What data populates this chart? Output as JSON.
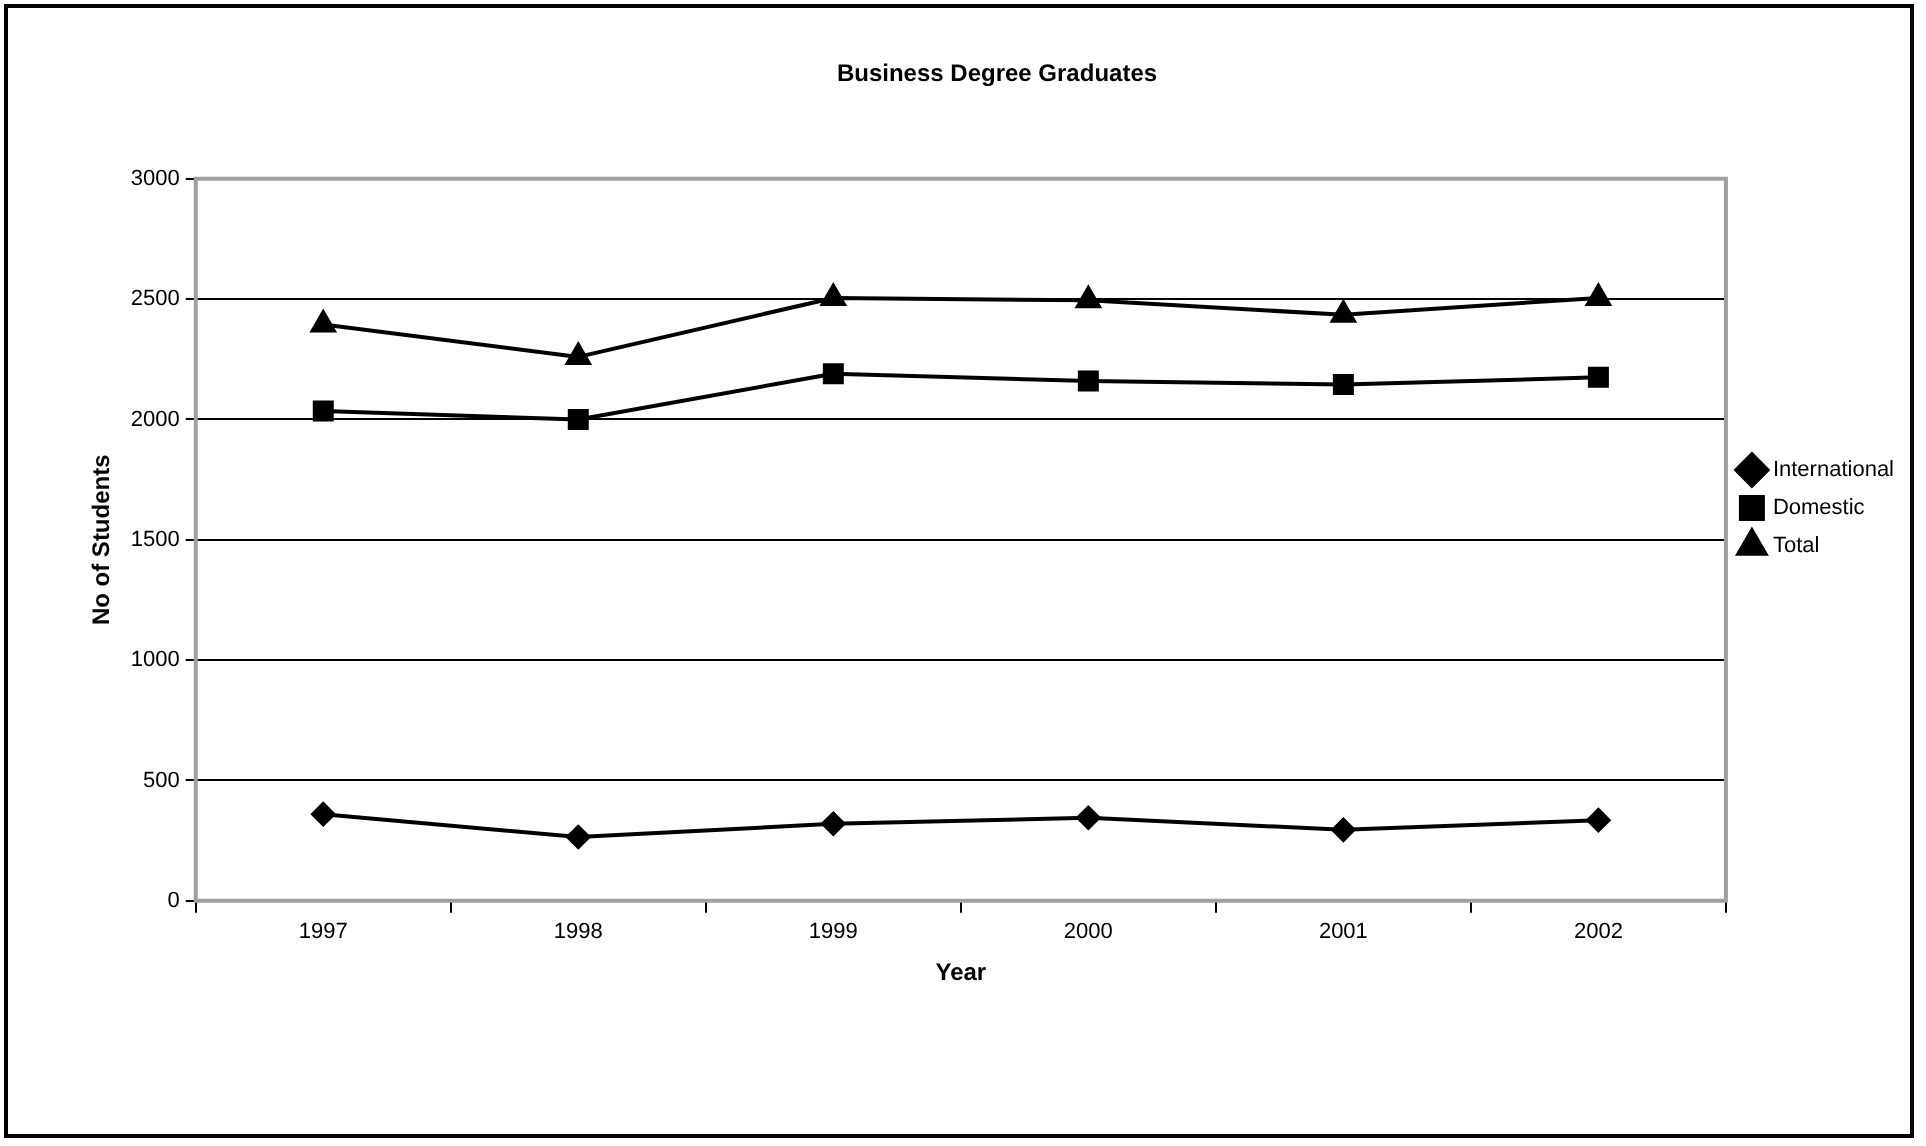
{
  "chart_data": {
    "type": "line",
    "title": "Business Degree Graduates",
    "xlabel": "Year",
    "ylabel": "No of Students",
    "categories": [
      "1997",
      "1998",
      "1999",
      "2000",
      "2001",
      "2002"
    ],
    "series": [
      {
        "name": "International",
        "color": "#000000",
        "marker": "diamond",
        "values": [
          360,
          265,
          320,
          345,
          295,
          335
        ]
      },
      {
        "name": "Domestic",
        "color": "#000000",
        "marker": "square",
        "values": [
          2035,
          2000,
          2190,
          2160,
          2145,
          2175
        ]
      },
      {
        "name": "Total",
        "color": "#000000",
        "marker": "triangle",
        "values": [
          2395,
          2260,
          2505,
          2495,
          2435,
          2505
        ]
      }
    ],
    "ylim": [
      0,
      3000
    ],
    "yticks": [
      0,
      500,
      1000,
      1500,
      2000,
      2500,
      3000
    ],
    "grid": "y",
    "legend": "right",
    "line_style": "solid"
  }
}
